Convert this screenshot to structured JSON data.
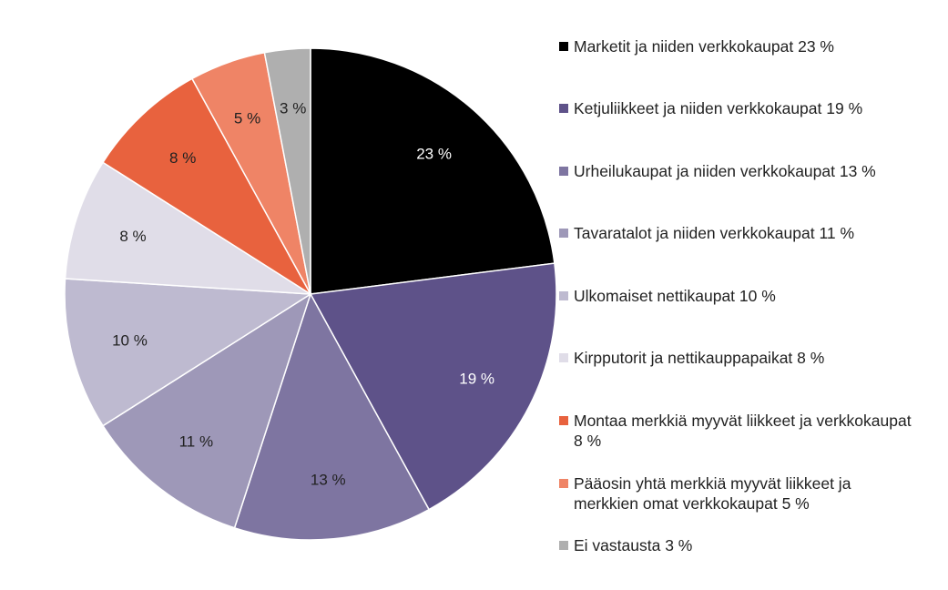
{
  "chart_data": {
    "type": "pie",
    "start_angle_deg": 0,
    "direction": "clockwise",
    "slices": [
      {
        "legend": "Marketit ja niiden verkkokaupat 23 %",
        "value": 23,
        "data_label": "23 %",
        "color": "#000000",
        "label_color": "#ffffff"
      },
      {
        "legend": "Ketjuliikkeet ja niiden verkkokaupat 19 %",
        "value": 19,
        "data_label": "19 %",
        "color": "#5e5289",
        "label_color": "#ffffff"
      },
      {
        "legend": "Urheilukaupat ja niiden verkkokaupat 13 %",
        "value": 13,
        "data_label": "13 %",
        "color": "#7e75a1",
        "label_color": "#222222"
      },
      {
        "legend": "Tavaratalot ja niiden verkkokaupat 11 %",
        "value": 11,
        "data_label": "11 %",
        "color": "#9e98b8",
        "label_color": "#222222"
      },
      {
        "legend": "Ulkomaiset nettikaupat 10 %",
        "value": 10,
        "data_label": "10 %",
        "color": "#bebad0",
        "label_color": "#222222"
      },
      {
        "legend": "Kirpputorit ja nettikauppapaikat 8 %",
        "value": 8,
        "data_label": "8 %",
        "color": "#e0dde8",
        "label_color": "#222222"
      },
      {
        "legend": "Montaa merkkiä myyvät liikkeet ja verkkokaupat 8 %",
        "value": 8,
        "data_label": "8 %",
        "color": "#e8623e",
        "label_color": "#222222"
      },
      {
        "legend": "Pääosin yhtä merkkiä myyvät liikkeet ja merkkien omat verkkokaupat 5 %",
        "value": 5,
        "data_label": "5 %",
        "color": "#ef8466",
        "label_color": "#222222"
      },
      {
        "legend": "Ei vastausta 3 %",
        "value": 3,
        "data_label": "3 %",
        "color": "#afafaf",
        "label_color": "#222222"
      }
    ],
    "legend_position": "right"
  },
  "legend_lines": [
    [
      "Marketit ja niiden verkkokaupat 23 %"
    ],
    [
      "Ketjuliikkeet ja niiden verkkokaupat 19 %"
    ],
    [
      "Urheilukaupat ja niiden verkkokaupat 13 %"
    ],
    [
      "Tavaratalot ja niiden verkkokaupat 11 %"
    ],
    [
      "Ulkomaiset nettikaupat 10 %"
    ],
    [
      "Kirpputorit ja nettikauppapaikat 8 %"
    ],
    [
      "Montaa merkkiä myyvät liikkeet ja verkkokaupat",
      "8 %"
    ],
    [
      "Pääosin yhtä merkkiä myyvät liikkeet ja",
      "merkkien omat verkkokaupat 5 %"
    ],
    [
      "Ei vastausta 3 %"
    ]
  ]
}
